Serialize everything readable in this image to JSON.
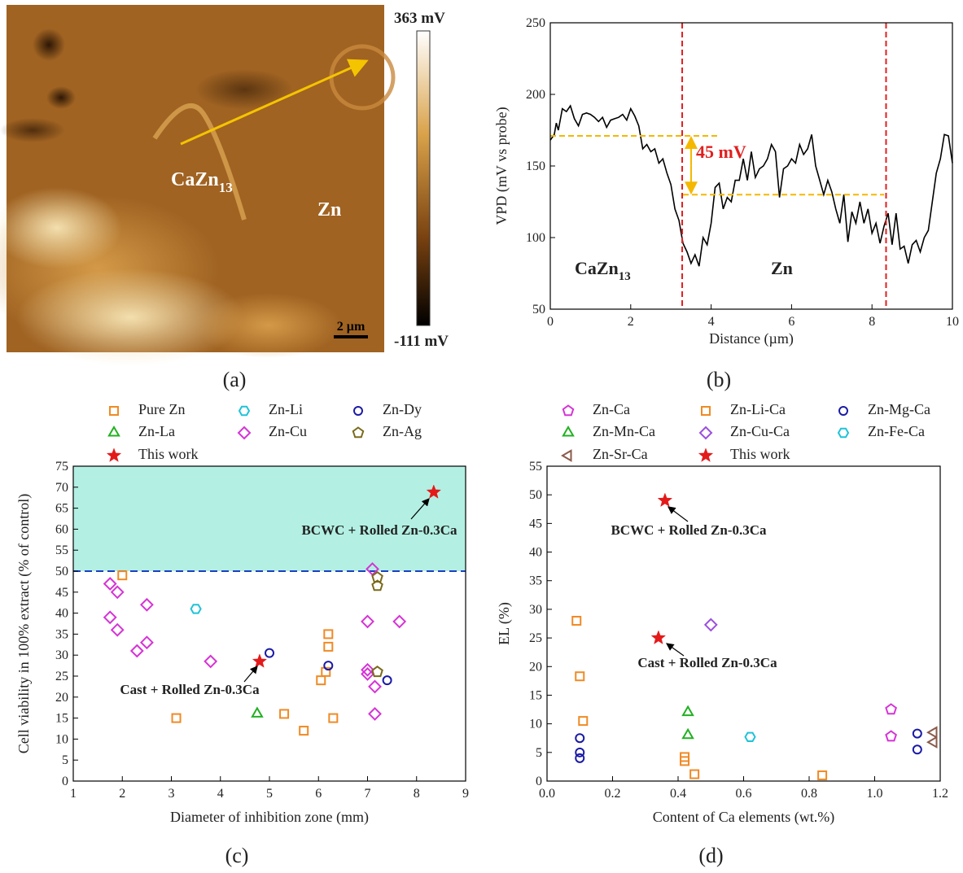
{
  "image_panel": {
    "panel_label": "(a)",
    "phase_labels": [
      {
        "text": "CaZn",
        "sub": "13"
      },
      {
        "text": "Zn"
      }
    ],
    "scale_bar": "2 µm",
    "colorbar": {
      "top": "363 mV",
      "bottom": "-111 mV"
    }
  },
  "chart_data": [
    {
      "type": "line",
      "panel_label": "(b)",
      "x_label": "Distance (µm)",
      "y_label": "VPD (mV vs probe)",
      "color": "#000000",
      "x": [
        0,
        0.1,
        0.15,
        0.2,
        0.3,
        0.4,
        0.5,
        0.6,
        0.7,
        0.8,
        0.9,
        1.0,
        1.1,
        1.2,
        1.3,
        1.4,
        1.5,
        1.6,
        1.7,
        1.8,
        1.9,
        2.0,
        2.1,
        2.2,
        2.3,
        2.4,
        2.5,
        2.6,
        2.7,
        2.8,
        2.9,
        3.0,
        3.1,
        3.2,
        3.3,
        3.4,
        3.5,
        3.6,
        3.7,
        3.8,
        3.9,
        4.0,
        4.1,
        4.2,
        4.3,
        4.4,
        4.5,
        4.6,
        4.7,
        4.8,
        4.9,
        5.0,
        5.1,
        5.2,
        5.3,
        5.4,
        5.5,
        5.6,
        5.7,
        5.8,
        5.9,
        6.0,
        6.1,
        6.2,
        6.3,
        6.4,
        6.5,
        6.6,
        6.7,
        6.8,
        6.9,
        7.0,
        7.1,
        7.2,
        7.3,
        7.4,
        7.5,
        7.6,
        7.7,
        7.8,
        7.9,
        8.0,
        8.1,
        8.2,
        8.3,
        8.4,
        8.5,
        8.6,
        8.7,
        8.8,
        8.9,
        9.0,
        9.1,
        9.2,
        9.3,
        9.4,
        9.5,
        9.6,
        9.7,
        9.8,
        9.9,
        10.0
      ],
      "values": [
        168,
        172,
        180,
        175,
        190,
        188,
        192,
        183,
        178,
        186,
        187,
        186,
        184,
        181,
        184,
        177,
        182,
        183,
        184,
        186,
        182,
        190,
        185,
        178,
        162,
        165,
        160,
        162,
        152,
        155,
        145,
        137,
        120,
        112,
        96,
        90,
        82,
        88,
        80,
        100,
        95,
        110,
        135,
        138,
        120,
        128,
        125,
        140,
        140,
        155,
        140,
        160,
        142,
        148,
        150,
        155,
        165,
        160,
        128,
        148,
        150,
        155,
        152,
        165,
        158,
        162,
        172,
        150,
        140,
        130,
        140,
        132,
        120,
        110,
        130,
        97,
        118,
        110,
        125,
        110,
        120,
        103,
        110,
        96,
        108,
        117,
        95,
        117,
        92,
        94,
        82,
        95,
        98,
        90,
        100,
        105,
        125,
        145,
        155,
        172,
        171,
        152
      ],
      "xlim": [
        0,
        10
      ],
      "ylim": [
        50,
        250
      ],
      "xticks": [
        0,
        2,
        4,
        6,
        8,
        10
      ],
      "yticks": [
        50,
        100,
        150,
        200,
        250
      ],
      "vlines": {
        "values": [
          3.28,
          8.35
        ],
        "color": "#e02020"
      },
      "hlines": {
        "color": "#f5b800",
        "lines": [
          {
            "y": 171,
            "x": [
              0,
              4.2
            ]
          },
          {
            "y": 130,
            "x": [
              3.3,
              8.3
            ]
          }
        ]
      },
      "annotations": [
        {
          "text": "45 mV"
        },
        {
          "text": "CaZn",
          "sub": "13"
        },
        {
          "text": "Zn"
        }
      ]
    },
    {
      "type": "scatter",
      "panel_label": "(c)",
      "x_label": "Diameter of inhibition zone (mm)",
      "y_label": "Cell viability in 100% extract (% of control)",
      "xlim": [
        1,
        9
      ],
      "ylim": [
        0,
        75
      ],
      "xticks": [
        1,
        2,
        3,
        4,
        5,
        6,
        7,
        8,
        9
      ],
      "yticks": [
        0,
        5,
        10,
        15,
        20,
        25,
        30,
        35,
        40,
        45,
        50,
        55,
        60,
        65,
        70,
        75
      ],
      "threshold": 50,
      "threshold_color": "#1a3fc4",
      "shade_color": "#b3f0e3",
      "series": [
        {
          "name": "Pure Zn",
          "color": "#f08a24",
          "marker": "square",
          "x": [
            2.0,
            3.1,
            5.3,
            5.7,
            6.05,
            6.15,
            6.2,
            6.2,
            6.3
          ],
          "values": [
            49,
            15,
            16,
            12,
            24,
            26,
            35,
            32,
            15
          ]
        },
        {
          "name": "Zn-Li",
          "color": "#1fc3d8",
          "marker": "hexagon",
          "x": [
            3.5
          ],
          "values": [
            41
          ]
        },
        {
          "name": "Zn-Dy",
          "color": "#1a1aa6",
          "marker": "circle",
          "x": [
            5.0,
            6.2,
            7.4
          ],
          "values": [
            30.5,
            27.5,
            24
          ]
        },
        {
          "name": "Zn-La",
          "color": "#22b022",
          "marker": "triangle",
          "x": [
            4.75
          ],
          "values": [
            16
          ]
        },
        {
          "name": "Zn-Cu",
          "color": "#d633d6",
          "marker": "diamond",
          "x": [
            1.75,
            1.9,
            1.75,
            1.9,
            2.3,
            2.5,
            2.5,
            3.8,
            7.0,
            7.0,
            7.0,
            7.1,
            7.15,
            7.15,
            7.65
          ],
          "values": [
            47,
            45,
            39,
            36,
            31,
            42,
            33,
            28.5,
            38,
            26.5,
            25.5,
            50.5,
            22.5,
            16,
            38
          ]
        },
        {
          "name": "Zn-Ag",
          "color": "#7a6a1a",
          "marker": "pentagon",
          "x": [
            7.2,
            7.2,
            7.2
          ],
          "values": [
            48.5,
            46.5,
            26
          ]
        },
        {
          "name": "This work",
          "color": "#e41a1a",
          "marker": "star",
          "x": [
            4.8,
            8.35
          ],
          "values": [
            28.5,
            68.8
          ]
        }
      ],
      "annotations": [
        "BCWC + Rolled Zn-0.3Ca",
        "Cast + Rolled Zn-0.3Ca"
      ]
    },
    {
      "type": "scatter",
      "panel_label": "(d)",
      "x_label": "Content of Ca elements (wt.%)",
      "y_label": "EL (%)",
      "xlim": [
        0,
        1.2
      ],
      "ylim": [
        0,
        55
      ],
      "xticks": [
        {
          "value": 0,
          "label": "0.0"
        },
        0.2,
        0.4,
        0.6,
        0.8,
        {
          "value": 1,
          "label": "1.0"
        },
        1.2
      ],
      "yticks": [
        0,
        5,
        10,
        15,
        20,
        25,
        30,
        35,
        40,
        45,
        50,
        55
      ],
      "series": [
        {
          "name": "Zn-Ca",
          "color": "#d633d6",
          "marker": "pentagon",
          "x": [
            1.05,
            1.05
          ],
          "values": [
            12.5,
            7.8
          ]
        },
        {
          "name": "Zn-Li-Ca",
          "color": "#f08a24",
          "marker": "square",
          "x": [
            0.09,
            0.1,
            0.11,
            0.42,
            0.42,
            0.45,
            0.84
          ],
          "values": [
            28,
            18.3,
            10.5,
            4.2,
            3.5,
            1.2,
            1.0
          ]
        },
        {
          "name": "Zn-Mg-Ca",
          "color": "#1a1aa6",
          "marker": "circle",
          "x": [
            0.1,
            0.1,
            0.1,
            1.13,
            1.13
          ],
          "values": [
            7.5,
            5,
            4,
            8.3,
            5.5
          ]
        },
        {
          "name": "Zn-Mn-Ca",
          "color": "#22b022",
          "marker": "triangle",
          "x": [
            0.43,
            0.43
          ],
          "values": [
            12,
            8
          ]
        },
        {
          "name": "Zn-Cu-Ca",
          "color": "#9b4fe0",
          "marker": "diamond",
          "x": [
            0.5
          ],
          "values": [
            27.3
          ]
        },
        {
          "name": "Zn-Fe-Ca",
          "color": "#1fc3d8",
          "marker": "hexagon",
          "x": [
            0.62
          ],
          "values": [
            7.7
          ]
        },
        {
          "name": "Zn-Sr-Ca",
          "color": "#8b5a4a",
          "marker": "ltriangle",
          "x": [
            1.18,
            1.18
          ],
          "values": [
            8.5,
            6.8
          ]
        },
        {
          "name": "This work",
          "color": "#e41a1a",
          "marker": "star",
          "x": [
            0.36,
            0.34
          ],
          "values": [
            49,
            25
          ]
        }
      ],
      "annotations": [
        "BCWC + Rolled Zn-0.3Ca",
        "Cast + Rolled Zn-0.3Ca"
      ]
    }
  ]
}
